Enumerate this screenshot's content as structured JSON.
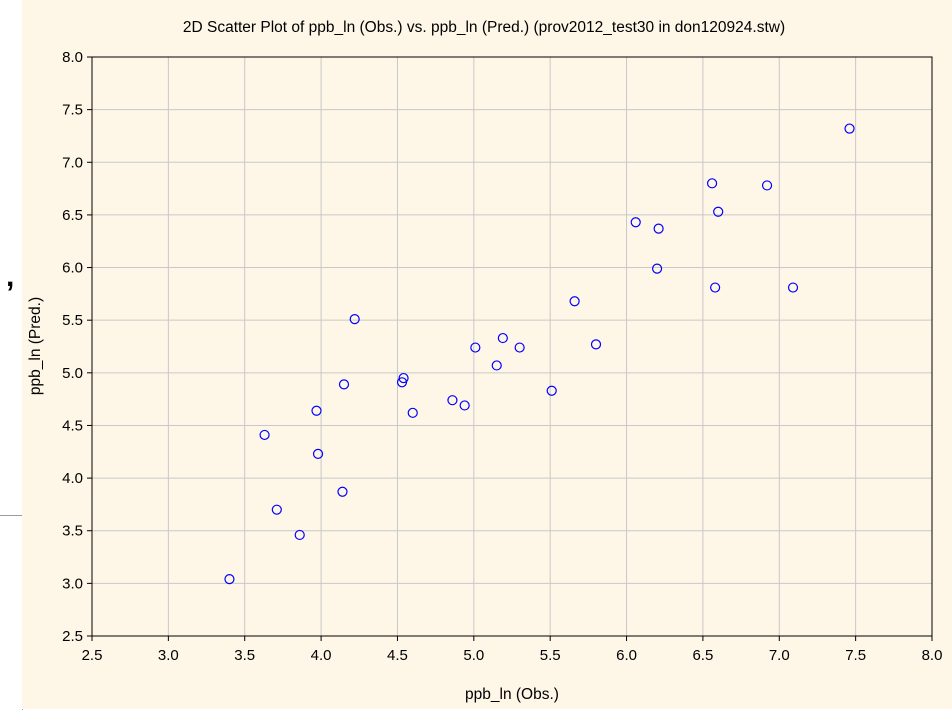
{
  "chart_data": {
    "type": "scatter",
    "title": "2D Scatter Plot of ppb_ln (Obs.) vs. ppb_ln (Pred.) (prov2012_test30 in don120924.stw)",
    "xlabel": "ppb_ln (Obs.)",
    "ylabel": "ppb_ln (Pred.)",
    "xlim": [
      2.5,
      8.0
    ],
    "ylim": [
      2.5,
      8.0
    ],
    "xticks": [
      "2.5",
      "3.0",
      "3.5",
      "4.0",
      "4.5",
      "5.0",
      "5.5",
      "6.0",
      "6.5",
      "7.0",
      "7.5",
      "8.0"
    ],
    "yticks": [
      "2.5",
      "3.0",
      "3.5",
      "4.0",
      "4.5",
      "5.0",
      "5.5",
      "6.0",
      "6.5",
      "7.0",
      "7.5",
      "8.0"
    ],
    "grid": true,
    "marker": "open-circle",
    "colors": {
      "marker": "#0000ff",
      "background": "#fef7e8",
      "grid": "#c8c8c8",
      "axis": "#000000"
    },
    "points": [
      {
        "x": 3.4,
        "y": 3.04
      },
      {
        "x": 3.63,
        "y": 4.41
      },
      {
        "x": 3.71,
        "y": 3.7
      },
      {
        "x": 3.86,
        "y": 3.46
      },
      {
        "x": 3.97,
        "y": 4.64
      },
      {
        "x": 3.98,
        "y": 4.23
      },
      {
        "x": 4.14,
        "y": 3.87
      },
      {
        "x": 4.15,
        "y": 4.89
      },
      {
        "x": 4.22,
        "y": 5.51
      },
      {
        "x": 4.53,
        "y": 4.91
      },
      {
        "x": 4.54,
        "y": 4.95
      },
      {
        "x": 4.6,
        "y": 4.62
      },
      {
        "x": 4.86,
        "y": 4.74
      },
      {
        "x": 4.94,
        "y": 4.69
      },
      {
        "x": 5.01,
        "y": 5.24
      },
      {
        "x": 5.15,
        "y": 5.07
      },
      {
        "x": 5.19,
        "y": 5.33
      },
      {
        "x": 5.3,
        "y": 5.24
      },
      {
        "x": 5.51,
        "y": 4.83
      },
      {
        "x": 5.66,
        "y": 5.68
      },
      {
        "x": 5.8,
        "y": 5.27
      },
      {
        "x": 6.06,
        "y": 6.43
      },
      {
        "x": 6.2,
        "y": 5.99
      },
      {
        "x": 6.21,
        "y": 6.37
      },
      {
        "x": 6.56,
        "y": 6.8
      },
      {
        "x": 6.58,
        "y": 5.81
      },
      {
        "x": 6.6,
        "y": 6.53
      },
      {
        "x": 6.92,
        "y": 6.78
      },
      {
        "x": 7.09,
        "y": 5.81
      },
      {
        "x": 7.46,
        "y": 7.32
      }
    ]
  }
}
